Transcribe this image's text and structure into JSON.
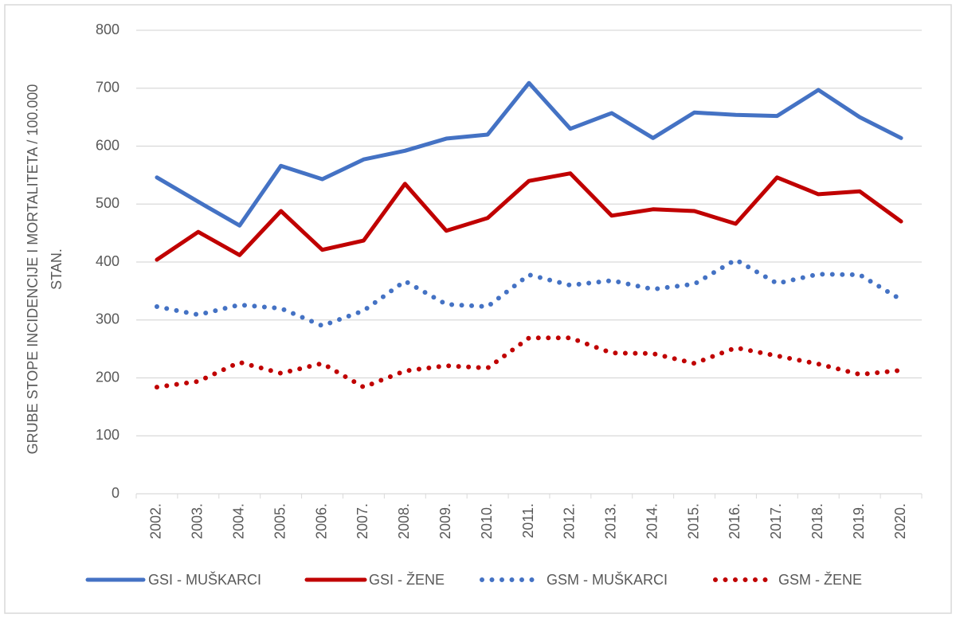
{
  "chart_data": {
    "type": "line",
    "ylabel": [
      "GRUBE STOPE INCIDENCIJE I MORTALITETA / 100.000",
      "STAN."
    ],
    "categories": [
      "2002.",
      "2003.",
      "2004.",
      "2005.",
      "2006.",
      "2007.",
      "2008.",
      "2009.",
      "2010.",
      "2011.",
      "2012.",
      "2013.",
      "2014.",
      "2015.",
      "2016.",
      "2017.",
      "2018.",
      "2019.",
      "2020."
    ],
    "series": [
      {
        "name": "GSI - MUŠKARCI",
        "color": "#4472c4",
        "style": "solid",
        "values": [
          546,
          504,
          463,
          566,
          543,
          577,
          592,
          613,
          620,
          709,
          630,
          657,
          614,
          658,
          654,
          652,
          697,
          650,
          614
        ]
      },
      {
        "name": "GSI - ŽENE",
        "color": "#c00000",
        "style": "solid",
        "values": [
          404,
          452,
          412,
          488,
          421,
          437,
          535,
          454,
          476,
          540,
          553,
          480,
          491,
          488,
          466,
          546,
          517,
          522,
          470
        ]
      },
      {
        "name": "GSM - MUŠKARCI",
        "color": "#4472c4",
        "style": "dotted",
        "values": [
          323,
          309,
          326,
          320,
          290,
          316,
          367,
          327,
          323,
          378,
          360,
          368,
          353,
          362,
          404,
          363,
          379,
          378,
          335
        ]
      },
      {
        "name": "GSM - ŽENE",
        "color": "#c00000",
        "style": "dotted",
        "values": [
          184,
          194,
          227,
          208,
          225,
          184,
          212,
          221,
          217,
          269,
          269,
          243,
          242,
          225,
          252,
          238,
          224,
          206,
          213
        ]
      }
    ],
    "ylim": [
      0,
      800
    ],
    "yticks": [
      0,
      100,
      200,
      300,
      400,
      500,
      600,
      700,
      800
    ],
    "grid": true,
    "legend": "bottom"
  }
}
